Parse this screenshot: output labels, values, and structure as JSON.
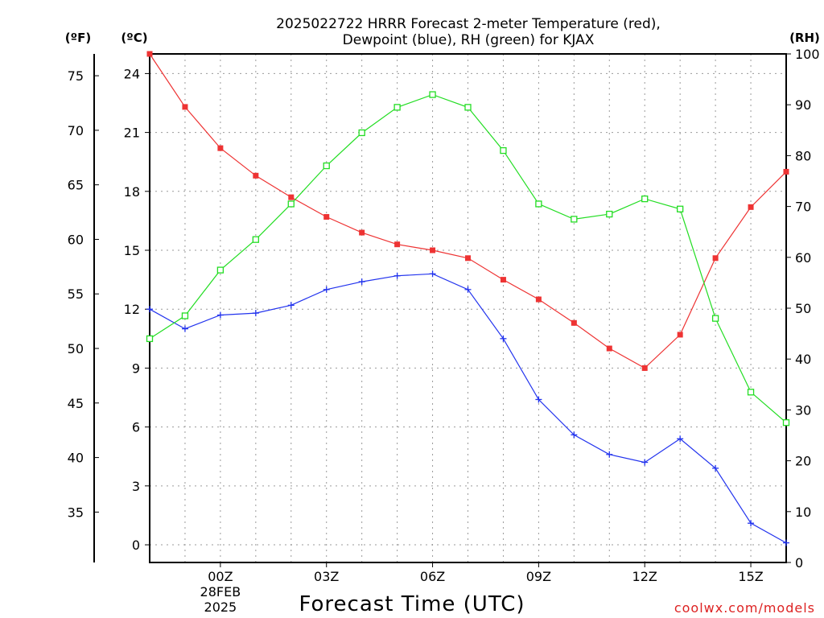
{
  "chart_data": {
    "type": "line",
    "title_lines": [
      "2025022722 HRRR Forecast 2-meter Temperature (red),",
      "Dewpoint (blue), RH (green) for KJAX"
    ],
    "xlabel": "Forecast Time (UTC)",
    "credit": "coolwx.com/models",
    "units": {
      "fahrenheit": "(ºF)",
      "celsius": "(ºC)",
      "rh": "(RH)"
    },
    "x_hours": [
      -2,
      -1,
      0,
      1,
      2,
      3,
      4,
      5,
      6,
      7,
      8,
      9,
      10,
      11,
      12,
      13,
      14,
      15,
      16
    ],
    "x_range": [
      -2,
      16
    ],
    "x_ticks": [
      {
        "hour": 0,
        "label": "00Z",
        "sub1": "28FEB",
        "sub2": "2025"
      },
      {
        "hour": 3,
        "label": "03Z",
        "sub1": "",
        "sub2": ""
      },
      {
        "hour": 6,
        "label": "06Z",
        "sub1": "",
        "sub2": ""
      },
      {
        "hour": 9,
        "label": "09Z",
        "sub1": "",
        "sub2": ""
      },
      {
        "hour": 12,
        "label": "12Z",
        "sub1": "",
        "sub2": ""
      },
      {
        "hour": 15,
        "label": "15Z",
        "sub1": "",
        "sub2": ""
      }
    ],
    "c_range": [
      -0.9,
      25.0
    ],
    "c_ticks": [
      0,
      3,
      6,
      9,
      12,
      15,
      18,
      21,
      24
    ],
    "f_ticks": [
      35,
      40,
      45,
      50,
      55,
      60,
      65,
      70,
      75
    ],
    "rh_range": [
      0,
      100
    ],
    "rh_ticks": [
      0,
      10,
      20,
      30,
      40,
      50,
      60,
      70,
      80,
      90,
      100
    ],
    "series": [
      {
        "name": "Temperature",
        "axis": "celsius",
        "color": "#ee3333",
        "marker": "filled-square",
        "values": [
          25.0,
          22.3,
          20.2,
          18.8,
          17.7,
          16.7,
          15.9,
          15.3,
          15.0,
          14.6,
          13.5,
          12.5,
          11.3,
          10.0,
          9.0,
          10.7,
          14.6,
          17.2,
          19.0
        ]
      },
      {
        "name": "Dewpoint",
        "axis": "celsius",
        "color": "#2233ee",
        "marker": "plus",
        "values": [
          12.0,
          11.0,
          11.7,
          11.8,
          12.2,
          13.0,
          13.4,
          13.7,
          13.8,
          13.0,
          10.5,
          7.4,
          5.6,
          4.6,
          4.2,
          5.4,
          3.9,
          1.1,
          0.1
        ]
      },
      {
        "name": "RH",
        "axis": "rh",
        "color": "#22dd22",
        "marker": "open-square",
        "values": [
          44,
          48.5,
          57.5,
          63.5,
          70.5,
          78,
          84.5,
          89.5,
          92,
          89.5,
          81,
          70.5,
          67.5,
          68.5,
          71.5,
          69.5,
          48,
          33.5,
          27.5
        ]
      }
    ],
    "grid": true
  }
}
